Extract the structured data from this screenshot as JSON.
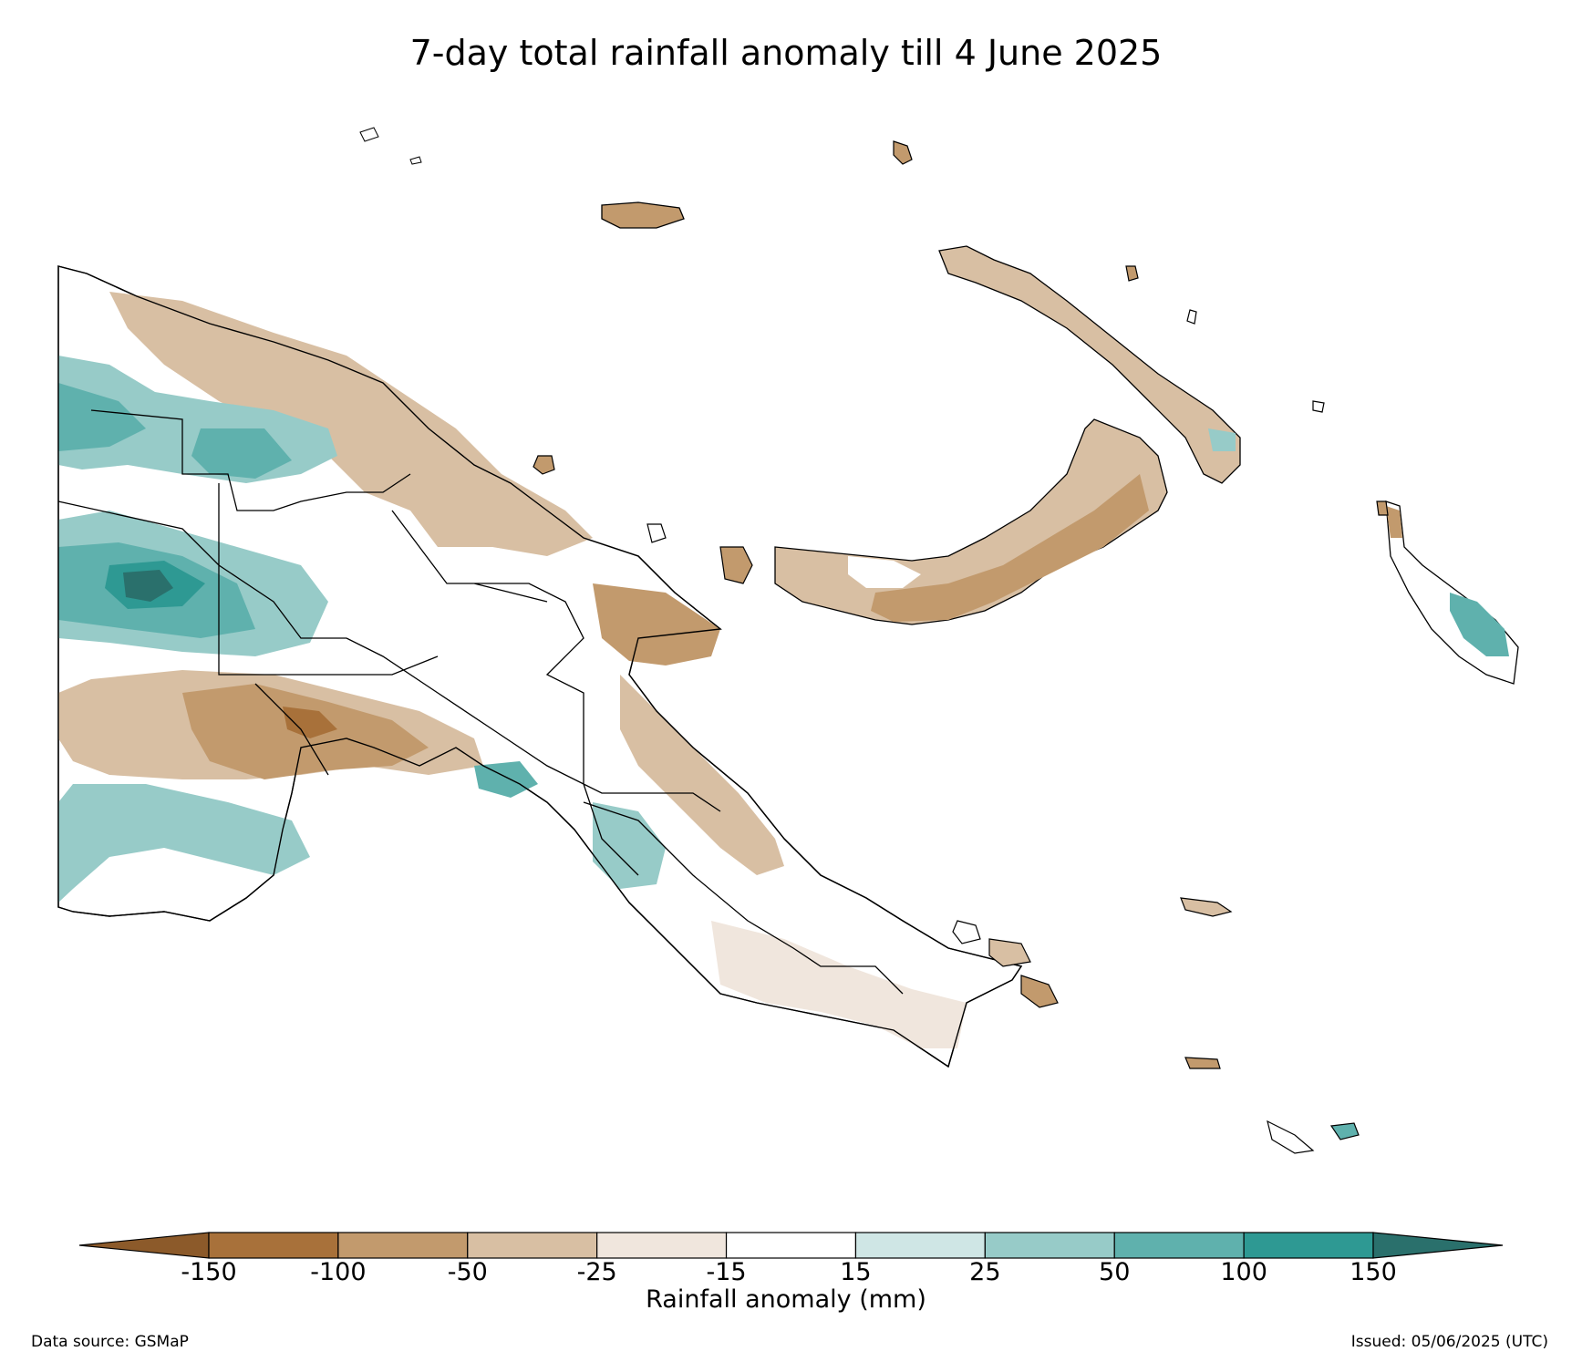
{
  "title": "7-day total rainfall anomaly till 4 June 2025",
  "colorbar": {
    "label": "Rainfall anomaly (mm)",
    "ticks": [
      "-150",
      "-100",
      "-50",
      "-25",
      "-15",
      "15",
      "25",
      "50",
      "100",
      "150"
    ],
    "bins": [
      {
        "range": "< -150",
        "color": "#8c5a2a"
      },
      {
        "range": "-150 to -100",
        "color": "#a8713a"
      },
      {
        "range": "-100 to -50",
        "color": "#c29a6d"
      },
      {
        "range": "-50 to -25",
        "color": "#d8bfa3"
      },
      {
        "range": "-25 to -15",
        "color": "#f0e6dd"
      },
      {
        "range": "-15 to 15",
        "color": "#ffffff"
      },
      {
        "range": "15 to 25",
        "color": "#cfe6e5"
      },
      {
        "range": "25 to 50",
        "color": "#97cbc8"
      },
      {
        "range": "50 to 100",
        "color": "#5fb1ad"
      },
      {
        "range": "100 to 150",
        "color": "#2e9993"
      },
      {
        "range": "> 150",
        "color": "#2a706c"
      }
    ]
  },
  "footer": {
    "source": "Data source: GSMaP",
    "issued": "Issued: 05/06/2025 (UTC)"
  }
}
